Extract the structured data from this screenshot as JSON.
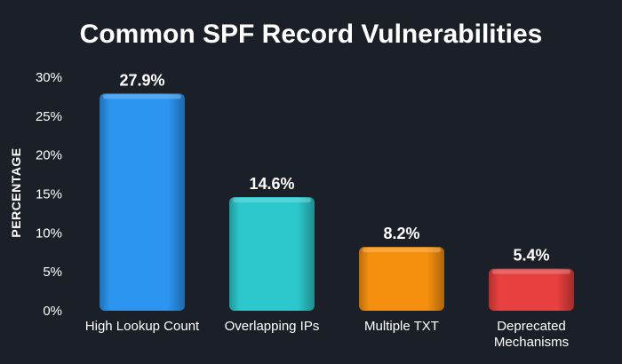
{
  "chart_data": {
    "type": "bar",
    "title": "Common SPF Record Vulnerabilities",
    "xlabel": "",
    "ylabel": "PERCENTAGE",
    "ylim": [
      0,
      30
    ],
    "yticks": [
      0,
      5,
      10,
      15,
      20,
      25,
      30
    ],
    "ytick_labels": [
      "0%",
      "5%",
      "10%",
      "15%",
      "20%",
      "25%",
      "30%"
    ],
    "grid": false,
    "legend": "none",
    "categories": [
      "High Lookup Count",
      "Overlapping IPs",
      "Multiple TXT",
      "Deprecated Mechanisms"
    ],
    "category_lines": [
      [
        "High Lookup Count"
      ],
      [
        "Overlapping IPs"
      ],
      [
        "Multiple TXT"
      ],
      [
        "Deprecated",
        "Mechanisms"
      ]
    ],
    "values": [
      27.9,
      14.6,
      8.2,
      5.4
    ],
    "value_labels": [
      "27.9%",
      "14.6%",
      "8.2%",
      "5.4%"
    ],
    "colors": [
      "#2c95f0",
      "#2cc8cc",
      "#f5900f",
      "#e8403e"
    ],
    "background": "#1b1f27"
  }
}
